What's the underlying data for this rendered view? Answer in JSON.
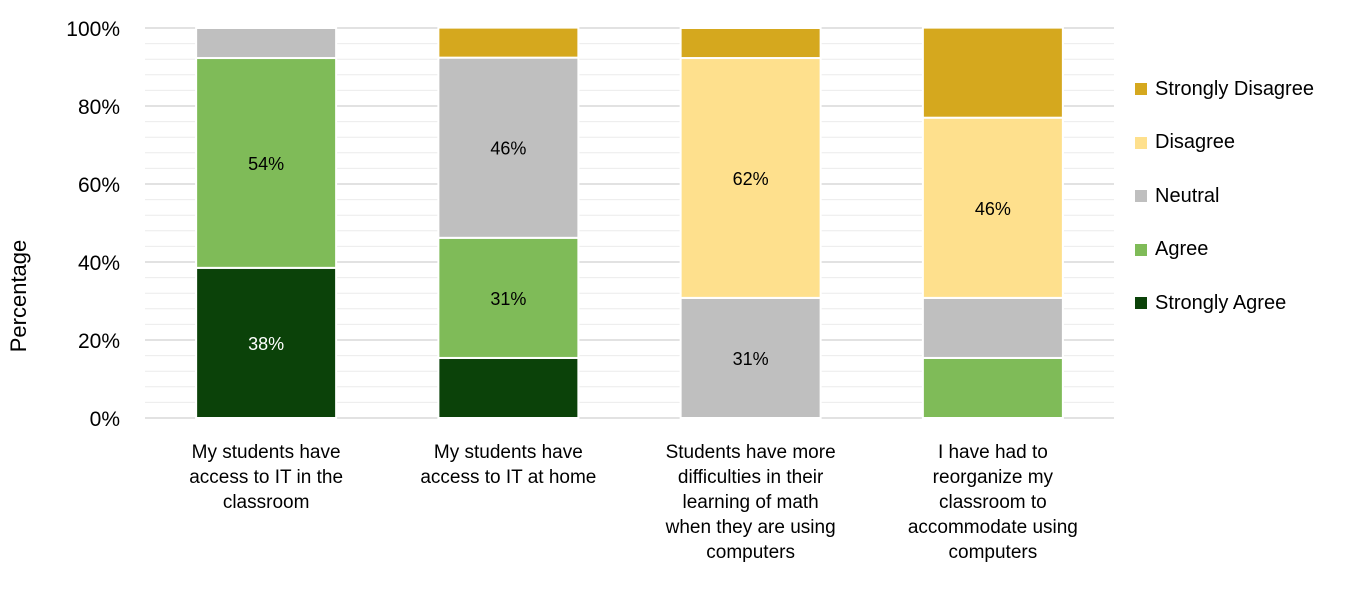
{
  "chart_data": {
    "type": "bar",
    "stacked": true,
    "categories": [
      "My students have access to IT in the classroom",
      "My students have access to IT at home",
      "Students have more difficulties in their learning of math when they are using computers",
      "I have had to reorganize my classroom to accommodate using computers"
    ],
    "category_lines": [
      [
        "My students have",
        "access to IT in the",
        "classroom"
      ],
      [
        "My students have",
        "access to IT at home"
      ],
      [
        "Students have more",
        "difficulties in their",
        "learning of math",
        "when they are using",
        "computers"
      ],
      [
        "I have had to",
        "reorganize my",
        "classroom to",
        "accommodate using",
        "computers"
      ]
    ],
    "series": [
      {
        "name": "Strongly Agree",
        "color": "#0b4209",
        "values": [
          38.5,
          15.4,
          0,
          0
        ],
        "labels": [
          "38%",
          "",
          "",
          ""
        ],
        "label_color": "#ffffff"
      },
      {
        "name": "Agree",
        "color": "#7fbb58",
        "values": [
          53.8,
          30.8,
          0,
          15.4
        ],
        "labels": [
          "54%",
          "31%",
          "",
          ""
        ],
        "label_color": "#000000"
      },
      {
        "name": "Neutral",
        "color": "#bfbfbf",
        "values": [
          7.7,
          46.2,
          30.8,
          15.4
        ],
        "labels": [
          "",
          "46%",
          "31%",
          ""
        ],
        "label_color": "#000000"
      },
      {
        "name": "Disagree",
        "color": "#fee08d",
        "values": [
          0,
          0,
          61.5,
          46.2
        ],
        "labels": [
          "",
          "",
          "62%",
          "46%"
        ],
        "label_color": "#000000"
      },
      {
        "name": "Strongly Disagree",
        "color": "#d5a81e",
        "values": [
          0,
          7.7,
          7.7,
          23.1
        ],
        "labels": [
          "",
          "",
          "",
          ""
        ],
        "label_color": "#000000"
      }
    ],
    "ylabel": "Percentage",
    "xlabel": "",
    "ylim": [
      0,
      100
    ],
    "yticks": [
      "0%",
      "20%",
      "40%",
      "60%",
      "80%",
      "100%"
    ],
    "ytick_values": [
      0,
      20,
      40,
      60,
      80,
      100
    ],
    "minor_grid_step": 4,
    "grid": true,
    "legend": {
      "position": "right",
      "entries": [
        "Strongly Disagree",
        "Disagree",
        "Neutral",
        "Agree",
        "Strongly Agree"
      ]
    }
  }
}
